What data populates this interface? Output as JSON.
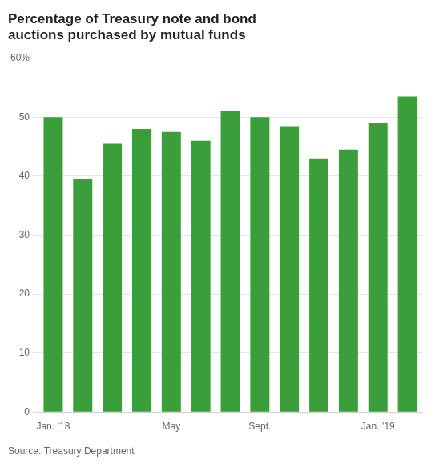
{
  "chart_data": {
    "type": "bar",
    "title": "Percentage of Treasury note and bond\nauctions purchased by mutual funds",
    "categories": [
      "Jan. ’18",
      null,
      null,
      null,
      "May",
      null,
      null,
      "Sept.",
      null,
      null,
      null,
      "Jan. ’19",
      null
    ],
    "values": [
      50.0,
      39.5,
      45.5,
      48.0,
      47.5,
      46.0,
      51.0,
      50.0,
      48.5,
      43.0,
      44.5,
      49.0,
      53.5
    ],
    "color": "#3a9e3a",
    "ylim": [
      0,
      60
    ],
    "yticks": [
      0,
      10,
      20,
      30,
      40,
      50,
      {
        "value": 60,
        "label": "60%"
      }
    ],
    "grid": true,
    "annotation": "Source: Treasury Department"
  }
}
